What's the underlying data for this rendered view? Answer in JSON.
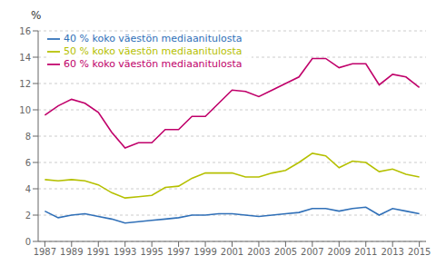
{
  "chart_data": {
    "type": "line",
    "ylabel": "%",
    "x": [
      1987,
      1988,
      1989,
      1990,
      1991,
      1992,
      1993,
      1994,
      1995,
      1996,
      1997,
      1998,
      1999,
      2000,
      2001,
      2002,
      2003,
      2004,
      2005,
      2006,
      2007,
      2008,
      2009,
      2010,
      2011,
      2012,
      2013,
      2014,
      2015
    ],
    "series": [
      {
        "name": "60 % koko väestön mediaanitulosta",
        "color": "#c0006a",
        "values": [
          9.6,
          10.3,
          10.8,
          10.5,
          9.8,
          8.3,
          7.1,
          7.5,
          7.5,
          8.5,
          8.5,
          9.5,
          9.5,
          10.5,
          11.5,
          11.4,
          11.0,
          11.5,
          12.0,
          12.5,
          13.9,
          13.9,
          13.2,
          13.5,
          13.5,
          11.9,
          12.7,
          12.5,
          11.7
        ]
      },
      {
        "name": "50 % koko väestön mediaanitulosta",
        "color": "#b5c000",
        "values": [
          4.7,
          4.6,
          4.7,
          4.6,
          4.3,
          3.7,
          3.3,
          3.4,
          3.5,
          4.1,
          4.2,
          4.8,
          5.2,
          5.2,
          5.2,
          4.9,
          4.9,
          5.2,
          5.4,
          6.0,
          6.7,
          6.5,
          5.6,
          6.1,
          6.0,
          5.3,
          5.5,
          5.1,
          4.9
        ]
      },
      {
        "name": "40 % koko väestön mediaanitulosta",
        "color": "#3070b8",
        "values": [
          2.3,
          1.8,
          2.0,
          2.1,
          1.9,
          1.7,
          1.4,
          1.5,
          1.6,
          1.7,
          1.8,
          2.0,
          2.0,
          2.1,
          2.1,
          2.0,
          1.9,
          2.0,
          2.1,
          2.2,
          2.5,
          2.5,
          2.3,
          2.5,
          2.6,
          2.0,
          2.5,
          2.3,
          2.1
        ]
      }
    ],
    "xlim": [
      1986.5,
      2015.5
    ],
    "xticks": [
      1987,
      1989,
      1991,
      1993,
      1995,
      1997,
      1999,
      2001,
      2003,
      2005,
      2007,
      2009,
      2011,
      2013,
      2015
    ],
    "ylim": [
      0,
      16
    ],
    "yticks": [
      0,
      2,
      4,
      6,
      8,
      10,
      12,
      14,
      16
    ],
    "grid": "y",
    "legend": "upper left"
  }
}
